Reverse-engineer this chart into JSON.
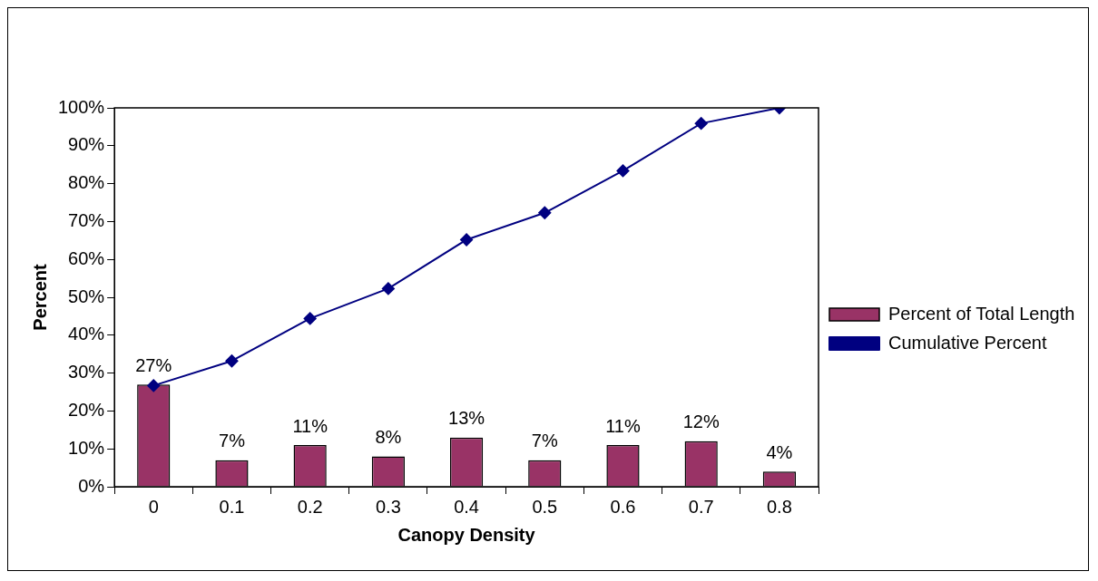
{
  "chart_data": {
    "type": "bar",
    "xlabel": "Canopy Density",
    "ylabel": "Percent",
    "categories": [
      "0",
      "0.1",
      "0.2",
      "0.3",
      "0.4",
      "0.5",
      "0.6",
      "0.7",
      "0.8"
    ],
    "series": [
      {
        "name": "Percent of Total Length",
        "color": "#993366",
        "values": [
          27,
          7,
          11,
          8,
          13,
          7,
          11,
          12,
          4
        ],
        "value_labels": [
          "27%",
          "7%",
          "11%",
          "8%",
          "13%",
          "7%",
          "11%",
          "12%",
          "4%"
        ]
      },
      {
        "name": "Cumulative Percent",
        "type": "line",
        "color": "#000080",
        "marker": "diamond",
        "values": [
          26.7,
          33.2,
          44.4,
          52.3,
          65.2,
          72.3,
          83.4,
          95.9,
          100
        ]
      }
    ],
    "ylim": [
      0,
      100
    ],
    "yticks": [
      {
        "value": 0,
        "label": "0%"
      },
      {
        "value": 10,
        "label": "10%"
      },
      {
        "value": 20,
        "label": "20%"
      },
      {
        "value": 30,
        "label": "30%"
      },
      {
        "value": 40,
        "label": "40%"
      },
      {
        "value": 50,
        "label": "50%"
      },
      {
        "value": 60,
        "label": "60%"
      },
      {
        "value": 70,
        "label": "70%"
      },
      {
        "value": 80,
        "label": "80%"
      },
      {
        "value": 90,
        "label": "90%"
      },
      {
        "value": 100,
        "label": "100%"
      }
    ],
    "grid": false,
    "legend": "right"
  }
}
